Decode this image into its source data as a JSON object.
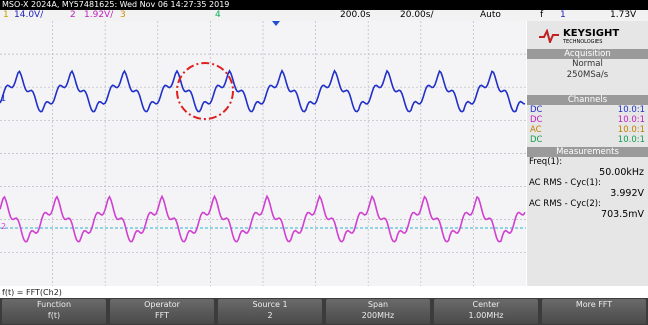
{
  "header": {
    "title": "MSO-X 2024A, MY57481625: Wed Nov 06 14:27:35 2019"
  },
  "status": {
    "ch1_num": "1",
    "ch1_scale": "14.0V/",
    "ch2_num": "2",
    "ch2_scale": "1.92V/",
    "ch3_num": "3",
    "ch4_num": "4",
    "delay": "200.0s",
    "timebase": "20.00s/",
    "trigger_mode": "Auto",
    "trigger_edge": "f",
    "trigger_src": "1",
    "trigger_level": "1.73V"
  },
  "markers": {
    "ch1": "1",
    "ch2": "2"
  },
  "panel": {
    "brand": "KEYSIGHT",
    "brand_sub": "TECHNOLOGIES",
    "acquisition": {
      "title": "Acquisition",
      "mode": "Normal",
      "rate": "250MSa/s"
    },
    "channels": {
      "title": "Channels",
      "rows": [
        [
          "DC",
          "10.0:1"
        ],
        [
          "DC",
          "10.0:1"
        ],
        [
          "AC",
          "10.0:1"
        ],
        [
          "DC",
          "10.0:1"
        ]
      ]
    },
    "measurements": {
      "title": "Measurements",
      "items": [
        [
          "Freq(1):",
          "50.00kHz"
        ],
        [
          "AC RMS - Cyc(1):",
          "3.992V"
        ],
        [
          "AC RMS - Cyc(2):",
          "703.5mV"
        ]
      ]
    }
  },
  "function_line": "f(t) = FFT(Ch2)",
  "softkeys": [
    [
      "Function",
      "f(t)"
    ],
    [
      "Operator",
      "FFT"
    ],
    [
      "Source 1",
      "2"
    ],
    [
      "Span",
      "200MHz"
    ],
    [
      "Center",
      "1.00MHz"
    ],
    [
      "More FFT",
      ""
    ]
  ]
}
